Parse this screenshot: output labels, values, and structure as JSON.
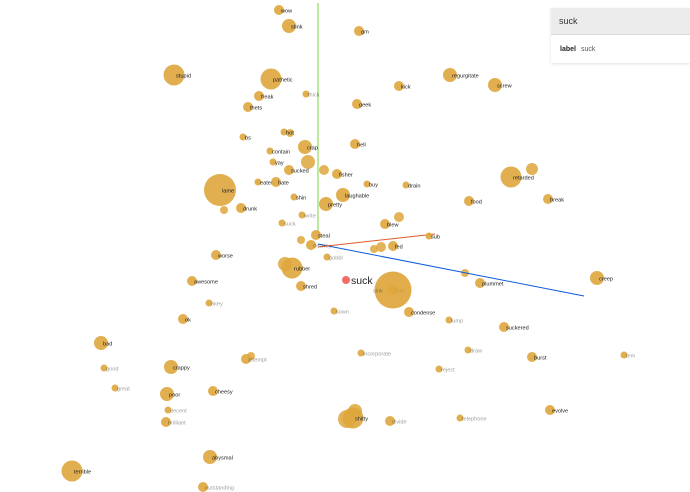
{
  "projector": {
    "selected_word": "suck",
    "colors": {
      "point": "#dea63c",
      "selected": "#f26c6c",
      "x_axis": "#0c5cdc",
      "y_axis": "#7cd43c",
      "z_axis": "#e4582c"
    },
    "points": [
      {
        "label": "wow",
        "size": "sm",
        "label_style": "normal"
      },
      {
        "label": "stink",
        "size": "md",
        "label_style": "normal"
      },
      {
        "label": "gm",
        "size": "sm",
        "label_style": "normal"
      },
      {
        "label": "stupid",
        "size": "lg",
        "label_style": "normal"
      },
      {
        "label": "pathetic",
        "size": "lg",
        "label_style": "normal"
      },
      {
        "label": "regurgitate",
        "size": "md",
        "label_style": "normal"
      },
      {
        "label": "screw",
        "size": "md",
        "label_style": "normal"
      },
      {
        "label": "kick",
        "size": "sm",
        "label_style": "normal"
      },
      {
        "label": "freak",
        "size": "sm",
        "label_style": "normal"
      },
      {
        "label": "thick",
        "size": "xs",
        "label_style": "faded"
      },
      {
        "label": "geek",
        "size": "sm",
        "label_style": "normal"
      },
      {
        "label": "thets",
        "size": "sm",
        "label_style": "normal"
      },
      {
        "label": "bs",
        "size": "xs",
        "label_style": "normal"
      },
      {
        "label": "hot",
        "size": "xs",
        "label_style": "normal"
      },
      {
        "label": "hell",
        "size": "sm",
        "label_style": "normal"
      },
      {
        "label": "crap",
        "size": "md",
        "label_style": "normal"
      },
      {
        "label": "contain",
        "size": "xs",
        "label_style": "normal"
      },
      {
        "label": "retarded",
        "size": "lg",
        "label_style": "normal"
      },
      {
        "label": "yay",
        "size": "xs",
        "label_style": "normal"
      },
      {
        "label": "sucked",
        "size": "sm",
        "label_style": "normal"
      },
      {
        "label": "fisher",
        "size": "sm",
        "label_style": "normal"
      },
      {
        "label": "lame",
        "size": "xl",
        "label_style": "normal"
      },
      {
        "label": "eaten",
        "size": "xs",
        "label_style": "normal"
      },
      {
        "label": "hate",
        "size": "sm",
        "label_style": "normal"
      },
      {
        "label": "buy",
        "size": "xs",
        "label_style": "normal"
      },
      {
        "label": "drain",
        "size": "xs",
        "label_style": "normal"
      },
      {
        "label": "laughable",
        "size": "md",
        "label_style": "normal"
      },
      {
        "label": "shin",
        "size": "xs",
        "label_style": "normal"
      },
      {
        "label": "food",
        "size": "sm",
        "label_style": "normal"
      },
      {
        "label": "break",
        "size": "sm",
        "label_style": "normal"
      },
      {
        "label": "drunk",
        "size": "sm",
        "label_style": "normal"
      },
      {
        "label": "pretty",
        "size": "md",
        "label_style": "normal"
      },
      {
        "label": "write",
        "size": "xs",
        "label_style": "faded"
      },
      {
        "label": "blew",
        "size": "sm",
        "label_style": "normal"
      },
      {
        "label": "suck",
        "size": "xs",
        "label_style": "faded"
      },
      {
        "label": "steal",
        "size": "sm",
        "label_style": "normal"
      },
      {
        "label": "sub",
        "size": "xs",
        "label_style": "normal"
      },
      {
        "label": "destroy",
        "size": "sm",
        "label_style": "faded"
      },
      {
        "label": "fed",
        "size": "sm",
        "label_style": "normal"
      },
      {
        "label": "worse",
        "size": "sm",
        "label_style": "normal"
      },
      {
        "label": "gobbl",
        "size": "xs",
        "label_style": "faded"
      },
      {
        "label": "rubber",
        "size": "lg",
        "label_style": "normal"
      },
      {
        "label": "creep",
        "size": "md",
        "label_style": "normal"
      },
      {
        "label": "awesome",
        "size": "sm",
        "label_style": "normal"
      },
      {
        "label": "shred",
        "size": "sm",
        "label_style": "normal"
      },
      {
        "label": "plummet",
        "size": "sm",
        "label_style": "normal"
      },
      {
        "label": "flop",
        "size": "sm",
        "label_style": "normal"
      },
      {
        "label": "sink",
        "size": "xxl",
        "label_style": "faded"
      },
      {
        "label": "okey",
        "size": "xs",
        "label_style": "faded"
      },
      {
        "label": "sown",
        "size": "xs",
        "label_style": "faded"
      },
      {
        "label": "condense",
        "size": "sm",
        "label_style": "normal"
      },
      {
        "label": "lump",
        "size": "xs",
        "label_style": "faded"
      },
      {
        "label": "ok",
        "size": "sm",
        "label_style": "normal"
      },
      {
        "label": "suckered",
        "size": "sm",
        "label_style": "normal"
      },
      {
        "label": "bad",
        "size": "md",
        "label_style": "normal"
      },
      {
        "label": "incorporate",
        "size": "xs",
        "label_style": "faded"
      },
      {
        "label": "draw",
        "size": "xs",
        "label_style": "faded"
      },
      {
        "label": "attempt",
        "size": "sm",
        "label_style": "faded"
      },
      {
        "label": "burst",
        "size": "sm",
        "label_style": "normal"
      },
      {
        "label": "tem",
        "size": "xs",
        "label_style": "faded"
      },
      {
        "label": "good",
        "size": "xs",
        "label_style": "faded"
      },
      {
        "label": "crappy",
        "size": "md",
        "label_style": "normal"
      },
      {
        "label": "reject",
        "size": "xs",
        "label_style": "faded"
      },
      {
        "label": "great",
        "size": "xs",
        "label_style": "faded"
      },
      {
        "label": "cheesy",
        "size": "sm",
        "label_style": "normal"
      },
      {
        "label": "poor",
        "size": "md",
        "label_style": "normal"
      },
      {
        "label": "decent",
        "size": "xs",
        "label_style": "faded"
      },
      {
        "label": "shitty",
        "size": "lg",
        "label_style": "normal"
      },
      {
        "label": "brilliant",
        "size": "sm",
        "label_style": "faded"
      },
      {
        "label": "divide",
        "size": "sm",
        "label_style": "faded"
      },
      {
        "label": "telephone",
        "size": "xs",
        "label_style": "faded"
      },
      {
        "label": "evolve",
        "size": "sm",
        "label_style": "normal"
      },
      {
        "label": "abysmal",
        "size": "md",
        "label_style": "normal"
      },
      {
        "label": "terrible",
        "size": "lg",
        "label_style": "normal"
      },
      {
        "label": "outstanding",
        "size": "sm",
        "label_style": "faded"
      }
    ]
  },
  "search": {
    "query": "suck",
    "result": {
      "key": "label",
      "value": "suck"
    }
  }
}
